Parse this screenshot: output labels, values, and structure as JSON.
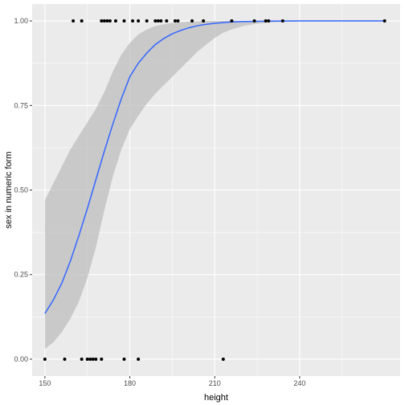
{
  "chart_data": {
    "type": "scatter",
    "xlabel": "height",
    "ylabel": "sex in numeric form",
    "xlim": [
      145.5,
      275.5
    ],
    "ylim": [
      -0.05,
      1.05
    ],
    "x_ticks": [
      150,
      180,
      210,
      240
    ],
    "x_tick_labels": [
      "150",
      "180",
      "210",
      "240"
    ],
    "y_ticks": [
      0.0,
      0.25,
      0.5,
      0.75,
      1.0
    ],
    "y_tick_labels": [
      "0.00",
      "0.25",
      "0.50",
      "0.75",
      "1.00"
    ],
    "grid": true,
    "legend": "none",
    "colors": {
      "panel": "#ebebeb",
      "grid_major": "#ffffff",
      "points": "#000000",
      "fit_line": "#3366ff",
      "confidence_band": "#bebebe"
    },
    "points": [
      {
        "x": 150,
        "y": 0
      },
      {
        "x": 157,
        "y": 0
      },
      {
        "x": 163,
        "y": 0
      },
      {
        "x": 165,
        "y": 0
      },
      {
        "x": 166,
        "y": 0
      },
      {
        "x": 167,
        "y": 0
      },
      {
        "x": 168,
        "y": 0
      },
      {
        "x": 170,
        "y": 0
      },
      {
        "x": 178,
        "y": 0
      },
      {
        "x": 183,
        "y": 0
      },
      {
        "x": 213,
        "y": 0
      },
      {
        "x": 160,
        "y": 1
      },
      {
        "x": 163,
        "y": 1
      },
      {
        "x": 170,
        "y": 1
      },
      {
        "x": 171,
        "y": 1
      },
      {
        "x": 172,
        "y": 1
      },
      {
        "x": 173,
        "y": 1
      },
      {
        "x": 175,
        "y": 1
      },
      {
        "x": 178,
        "y": 1
      },
      {
        "x": 181,
        "y": 1
      },
      {
        "x": 183,
        "y": 1
      },
      {
        "x": 186,
        "y": 1
      },
      {
        "x": 189,
        "y": 1
      },
      {
        "x": 190,
        "y": 1
      },
      {
        "x": 191,
        "y": 1
      },
      {
        "x": 193,
        "y": 1
      },
      {
        "x": 196,
        "y": 1
      },
      {
        "x": 197,
        "y": 1
      },
      {
        "x": 202,
        "y": 1
      },
      {
        "x": 206,
        "y": 1
      },
      {
        "x": 216,
        "y": 1
      },
      {
        "x": 224,
        "y": 1
      },
      {
        "x": 228,
        "y": 1
      },
      {
        "x": 229,
        "y": 1
      },
      {
        "x": 234,
        "y": 1
      },
      {
        "x": 270,
        "y": 1
      }
    ],
    "fit": {
      "x": [
        150,
        153,
        156,
        159,
        162,
        165,
        168,
        171,
        174,
        177,
        180,
        183,
        186,
        189,
        192,
        195,
        198,
        201,
        204,
        207,
        210,
        213,
        216,
        220,
        225,
        230,
        240,
        250,
        260,
        270
      ],
      "y": [
        0.135,
        0.175,
        0.225,
        0.29,
        0.365,
        0.445,
        0.53,
        0.615,
        0.695,
        0.77,
        0.835,
        0.875,
        0.905,
        0.93,
        0.948,
        0.962,
        0.972,
        0.98,
        0.986,
        0.99,
        0.993,
        0.995,
        0.997,
        0.998,
        0.999,
        0.9995,
        1.0,
        1.0,
        1.0,
        1.0
      ],
      "lower": [
        0.03,
        0.05,
        0.08,
        0.12,
        0.17,
        0.24,
        0.33,
        0.44,
        0.54,
        0.62,
        0.68,
        0.72,
        0.755,
        0.785,
        0.81,
        0.835,
        0.86,
        0.885,
        0.91,
        0.93,
        0.95,
        0.965,
        0.975,
        0.985,
        0.992,
        0.996,
        0.999,
        1.0,
        1.0,
        1.0
      ],
      "upper": [
        0.47,
        0.52,
        0.57,
        0.62,
        0.66,
        0.7,
        0.74,
        0.79,
        0.85,
        0.9,
        0.935,
        0.96,
        0.975,
        0.985,
        0.99,
        0.994,
        0.996,
        0.998,
        0.999,
        1.0,
        1.0,
        1.0,
        1.0,
        1.0,
        1.0,
        1.0,
        1.0,
        1.0,
        1.0,
        1.0
      ]
    }
  }
}
